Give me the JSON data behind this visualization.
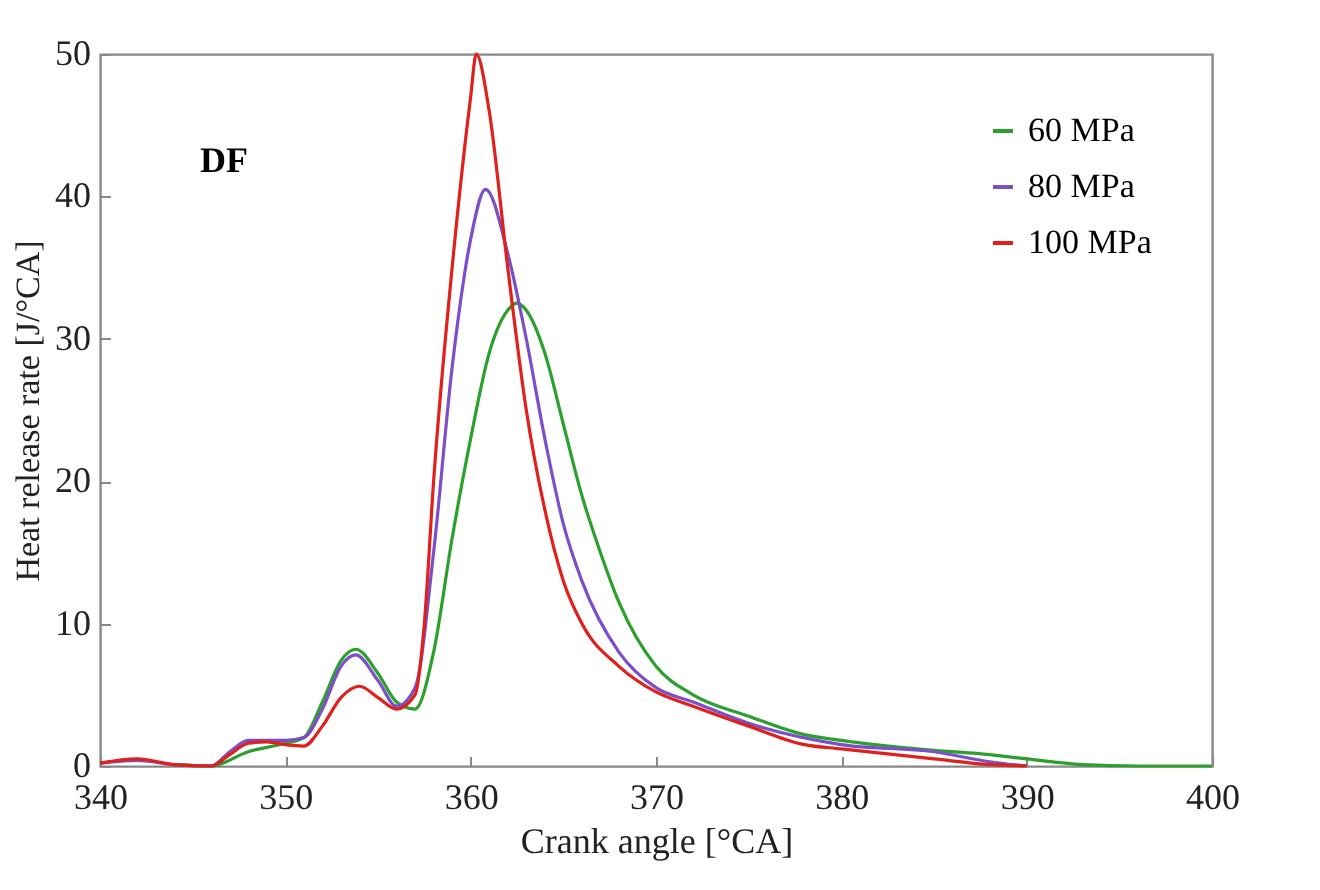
{
  "chart_data": {
    "type": "line",
    "xlabel": "Crank angle [°CA]",
    "ylabel": "Heat release rate [J/°CA]",
    "annotations": [
      "DF"
    ],
    "xlim": [
      340,
      400
    ],
    "xticks": [
      340,
      350,
      360,
      370,
      380,
      390,
      400
    ],
    "ylim": [
      0,
      50
    ],
    "yticks": [
      0,
      10,
      20,
      30,
      40,
      50
    ],
    "grid": false,
    "legend": "top right",
    "marker": "none",
    "line_style": "solid",
    "series": [
      {
        "name": "60 MPa",
        "color": "#2ca02c",
        "x": [
          344,
          346,
          348,
          350,
          351,
          352,
          353,
          353.8,
          355,
          356,
          357,
          358,
          359,
          360,
          361,
          362,
          362.5,
          363,
          364,
          365,
          366,
          367,
          368,
          370,
          372,
          375,
          378,
          380,
          385,
          388,
          390,
          393,
          396,
          400
        ],
        "values": [
          0.1,
          0,
          1,
          1.6,
          2,
          4.5,
          7.4,
          8.2,
          6.5,
          4.5,
          4,
          8,
          16,
          23,
          29,
          32,
          32.5,
          32,
          29,
          24,
          19,
          15,
          11.5,
          7,
          5,
          3.5,
          2.2,
          1.8,
          1.1,
          0.8,
          0.5,
          0.1,
          0,
          0
        ]
      },
      {
        "name": "80 MPa",
        "color": "#7b4fc9",
        "x": [
          340,
          342,
          344,
          346,
          347,
          348,
          350,
          351,
          352,
          353,
          353.8,
          355,
          356,
          357,
          358,
          359,
          360,
          360.8,
          362,
          363,
          364,
          365,
          366,
          368,
          370,
          372,
          375,
          380,
          385,
          388,
          390
        ],
        "values": [
          0.2,
          0.4,
          0.1,
          0,
          1,
          1.8,
          1.8,
          2,
          4,
          7,
          7.8,
          6,
          4.2,
          5.5,
          15,
          28,
          37,
          40.5,
          36,
          30,
          23,
          17,
          13,
          8,
          5.5,
          4.5,
          3,
          1.5,
          1,
          0.3,
          0
        ]
      },
      {
        "name": "100 MPa",
        "color": "#e0201b",
        "x": [
          340,
          342,
          344,
          346,
          347,
          348,
          349,
          350,
          351,
          352,
          353,
          354,
          355,
          356,
          357,
          357.5,
          358,
          359,
          360,
          360.3,
          361,
          362,
          363,
          364,
          365,
          366,
          368,
          370,
          372,
          375,
          378,
          380,
          385,
          388,
          390
        ],
        "values": [
          0.2,
          0.5,
          0.1,
          0,
          0.8,
          1.6,
          1.7,
          1.5,
          1.4,
          2.8,
          4.8,
          5.6,
          4.8,
          4,
          5,
          10,
          20,
          35,
          47,
          50,
          46,
          35,
          25,
          18,
          13,
          10,
          7,
          5.2,
          4.2,
          2.8,
          1.5,
          1.2,
          0.5,
          0.1,
          0
        ]
      }
    ]
  }
}
